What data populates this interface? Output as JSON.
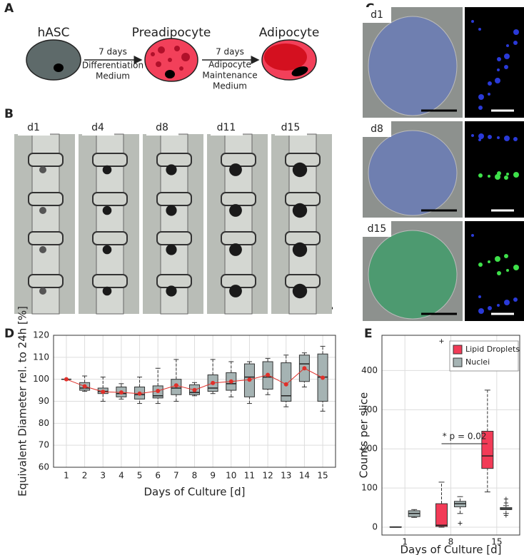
{
  "panels": {
    "A": {
      "label": "A",
      "cells": [
        "hASC",
        "Preadipocyte",
        "Adipocyte"
      ],
      "step1": [
        "7 days",
        "Differentiation",
        "Medium"
      ],
      "step2": [
        "7 days",
        "Adipocyte",
        "Maintenance",
        "Medium"
      ]
    },
    "B": {
      "label": "B",
      "days": [
        "d1",
        "d4",
        "d8",
        "d11",
        "d15"
      ]
    },
    "C": {
      "label": "C",
      "days": [
        "d1",
        "d8",
        "d15"
      ]
    }
  },
  "chart_data": [
    {
      "type": "box",
      "panel": "D",
      "xlabel": "Days of Culture [d]",
      "ylabel": "Equivalent Diameter rel. to 24h [%]",
      "x": [
        1,
        2,
        3,
        4,
        5,
        6,
        7,
        8,
        9,
        10,
        11,
        12,
        13,
        14,
        15
      ],
      "xlim": [
        0.3,
        15.7
      ],
      "xticks": [
        1,
        2,
        3,
        4,
        5,
        6,
        7,
        8,
        9,
        10,
        11,
        12,
        13,
        14,
        15
      ],
      "ylim": [
        60,
        120
      ],
      "yticks": [
        60,
        70,
        80,
        90,
        100,
        110,
        120
      ],
      "grid": true,
      "color": "#a5b3b3",
      "q1": [
        100,
        95,
        93.5,
        92,
        91,
        91.5,
        93,
        93,
        94.5,
        95,
        92,
        95.5,
        90,
        99,
        90
      ],
      "median": [
        100,
        96,
        94.5,
        93.5,
        93,
        92.5,
        96,
        94,
        96,
        98,
        101,
        101,
        92.5,
        107,
        101
      ],
      "q3": [
        100,
        98.5,
        96,
        96.5,
        96.5,
        97,
        100,
        97.5,
        102,
        103,
        107,
        108,
        107.5,
        111,
        111.5
      ],
      "whislo": [
        100,
        94.5,
        90,
        91,
        89,
        89,
        90,
        92.5,
        93.5,
        92,
        89,
        93,
        87.5,
        96.5,
        85.5
      ],
      "whishi": [
        100,
        101.5,
        101,
        98,
        101,
        105,
        109,
        98.5,
        109,
        108,
        108,
        109.5,
        111,
        112,
        115
      ],
      "mean": {
        "color": "#e0302a",
        "values": [
          100,
          96.8,
          94.3,
          94,
          93.5,
          94.7,
          97.2,
          95.1,
          98.3,
          99,
          99.8,
          102,
          97.7,
          105,
          100.7
        ]
      }
    },
    {
      "type": "box",
      "panel": "E",
      "xlabel": "Days of Culture [d]",
      "ylabel": "Counts per slice",
      "categories": [
        "1",
        "8",
        "15"
      ],
      "ylim": [
        -20,
        490
      ],
      "yticks": [
        0,
        100,
        200,
        300,
        400
      ],
      "grid": true,
      "legend": "upper right",
      "annotation": "* p = 0.02",
      "series": [
        {
          "name": "Lipid Droplets",
          "color": "#f23b57",
          "q1": [
            0,
            2,
            150
          ],
          "median": [
            0,
            5,
            182
          ],
          "q3": [
            1,
            60,
            245
          ],
          "whislo": [
            0,
            0,
            90
          ],
          "whishi": [
            1,
            115,
            350
          ],
          "outliers": [
            [],
            [
              475
            ],
            []
          ]
        },
        {
          "name": "Nuclei",
          "color": "#a5b3b3",
          "q1": [
            27,
            52,
            45
          ],
          "median": [
            35,
            60,
            47
          ],
          "q3": [
            42,
            66,
            50
          ],
          "whislo": [
            25,
            35,
            35
          ],
          "whishi": [
            45,
            78,
            55
          ],
          "outliers": [
            [],
            [
              10
            ],
            [
              30,
              62,
              72
            ]
          ]
        }
      ]
    }
  ]
}
